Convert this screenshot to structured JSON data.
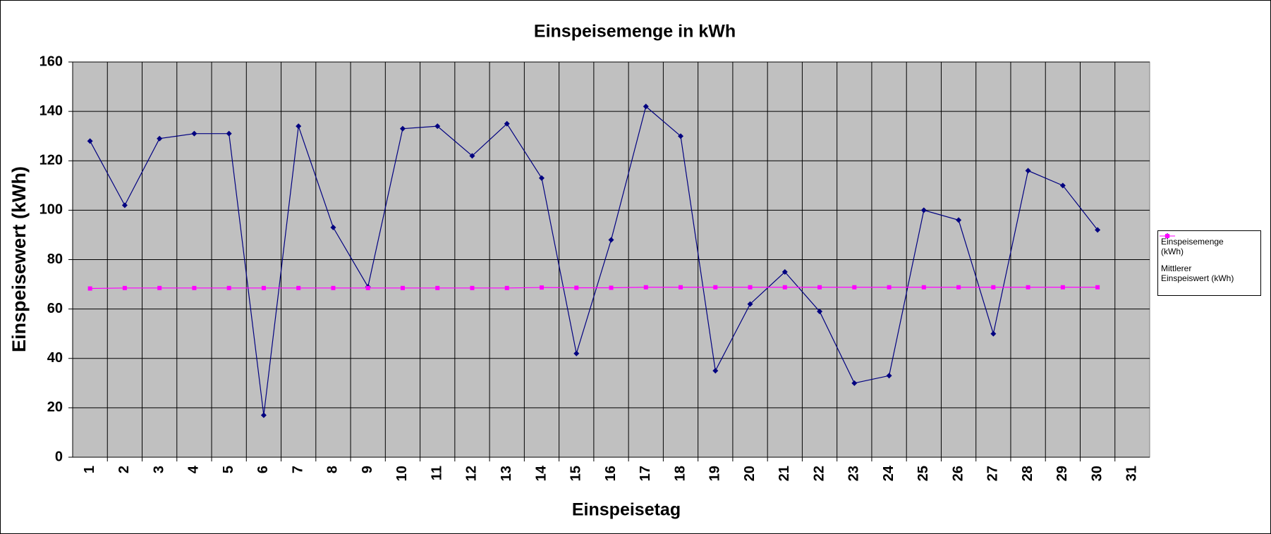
{
  "chart_data": {
    "type": "line",
    "title": "Einspeisemenge in kWh",
    "x_label": "Einspeisetag",
    "y_label": "Einspeisewert  (kWh)",
    "categories": [
      "1",
      "2",
      "3",
      "4",
      "5",
      "6",
      "7",
      "8",
      "9",
      "10",
      "11",
      "12",
      "13",
      "14",
      "15",
      "16",
      "17",
      "18",
      "19",
      "20",
      "21",
      "22",
      "23",
      "24",
      "25",
      "26",
      "27",
      "28",
      "29",
      "30",
      "31"
    ],
    "series": [
      {
        "name": "Einspeisemenge (kWh)",
        "color": "#000080",
        "marker": "diamond",
        "values": [
          128,
          102,
          129,
          131,
          131,
          17,
          134,
          93,
          69,
          133,
          134,
          122,
          135,
          113,
          42,
          88,
          142,
          130,
          35,
          62,
          75,
          59,
          30,
          33,
          100,
          96,
          50,
          116,
          110,
          92,
          null
        ]
      },
      {
        "name": "Mittlerer Einspeiswert (kWh)",
        "color": "#ff00ff",
        "marker": "square",
        "values": [
          68.3,
          68.5,
          68.5,
          68.5,
          68.5,
          68.5,
          68.5,
          68.5,
          68.5,
          68.5,
          68.5,
          68.5,
          68.5,
          68.7,
          68.6,
          68.6,
          68.8,
          68.8,
          68.8,
          68.8,
          68.8,
          68.8,
          68.8,
          68.8,
          68.8,
          68.8,
          68.8,
          68.8,
          68.8,
          68.8,
          null
        ]
      }
    ],
    "ylim": [
      0,
      160
    ],
    "yticks": [
      0,
      20,
      40,
      60,
      80,
      100,
      120,
      140,
      160
    ],
    "grid": true,
    "legend": "right"
  }
}
